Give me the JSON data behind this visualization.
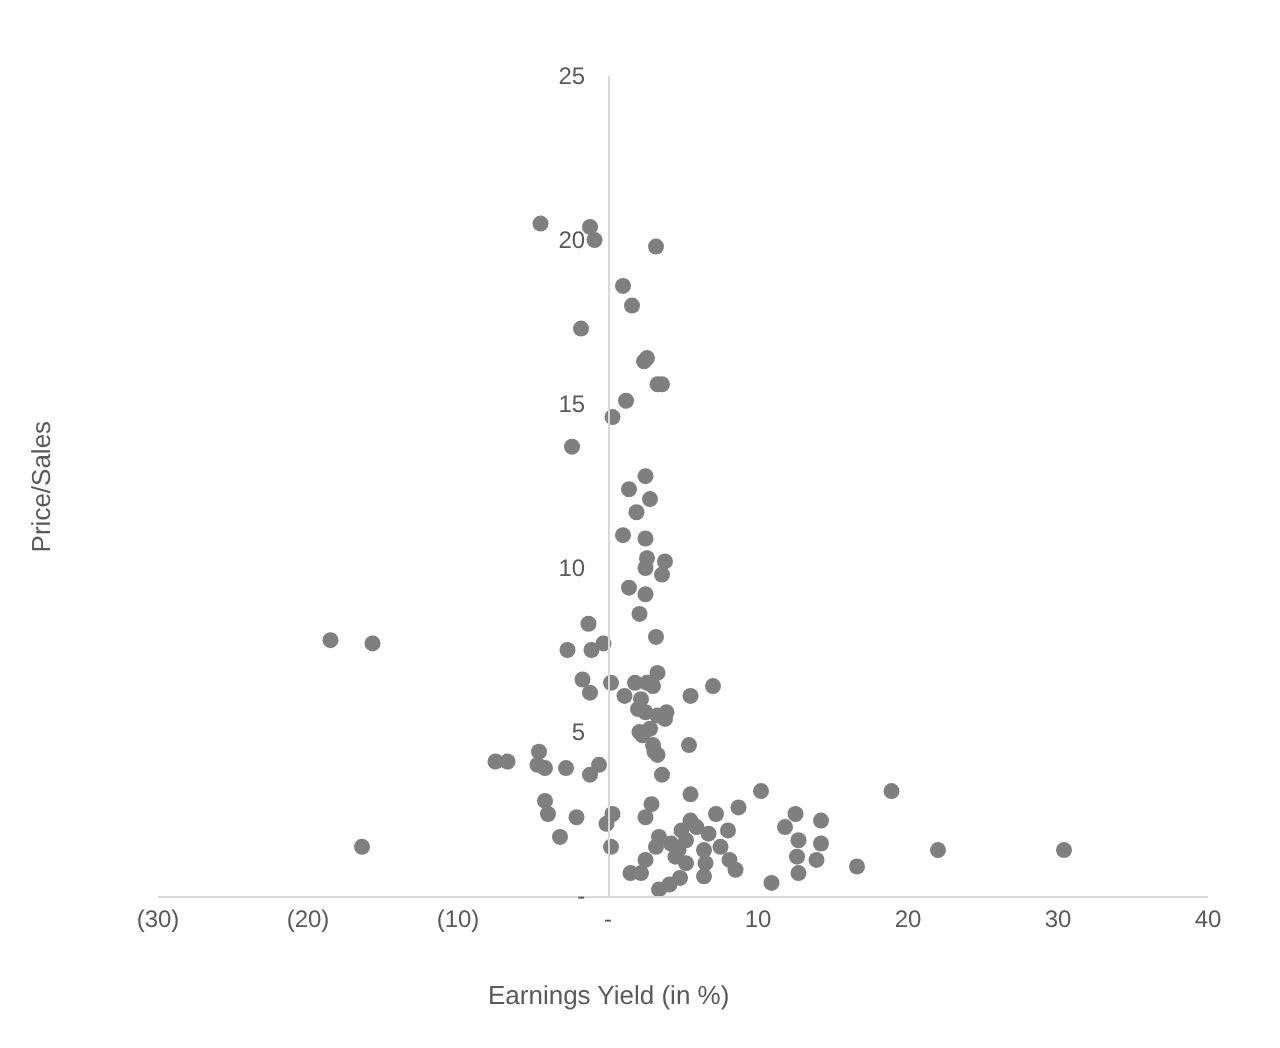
{
  "chart_data": {
    "type": "scatter",
    "xlabel": "Earnings Yield (in %)",
    "ylabel": "Price/Sales",
    "xlim": [
      -30,
      40
    ],
    "ylim": [
      0,
      25
    ],
    "xticks": [
      {
        "value": -30,
        "label": "(30)"
      },
      {
        "value": -20,
        "label": "(20)"
      },
      {
        "value": -10,
        "label": "(10)"
      },
      {
        "value": 0,
        "label": "-"
      },
      10,
      20,
      30,
      40
    ],
    "yticks": [
      {
        "value": 0,
        "label": "-"
      },
      5,
      10,
      15,
      20,
      25
    ],
    "grid": false,
    "marker": "circle",
    "series": [
      {
        "color": "#7f7f7f",
        "x": [
          -4.5,
          -1.2,
          -0.9,
          3.2,
          1.0,
          1.6,
          -1.8,
          2.4,
          2.6,
          3.3,
          3.6,
          1.2,
          0.3,
          -2.4,
          2.5,
          1.4,
          2.8,
          1.9,
          1.0,
          2.5,
          2.6,
          3.8,
          2.5,
          3.6,
          1.4,
          2.5,
          2.1,
          -18.5,
          -15.7,
          -1.3,
          3.2,
          -2.7,
          -1.1,
          -0.3,
          3.3,
          -1.7,
          0.2,
          1.8,
          2.6,
          3.0,
          7.0,
          -1.2,
          1.1,
          5.5,
          2.2,
          2.0,
          2.5,
          3.3,
          3.9,
          3.8,
          2.8,
          2.1,
          2.3,
          5.4,
          3.0,
          3.1,
          3.3,
          -4.6,
          -7.5,
          -6.7,
          -4.7,
          -4.2,
          -2.8,
          -0.6,
          -1.2,
          3.6,
          -4.2,
          -4.0,
          -2.1,
          -3.2,
          -16.4,
          0.3,
          -0.1,
          0.2,
          2.9,
          2.5,
          5.5,
          10.2,
          8.7,
          7.2,
          5.5,
          4.9,
          5.9,
          6.7,
          8.0,
          3.4,
          3.2,
          4.2,
          5.2,
          7.5,
          2.5,
          4.7,
          4.5,
          6.4,
          5.2,
          6.5,
          8.1,
          8.5,
          1.5,
          2.2,
          3.4,
          4.1,
          4.8,
          6.4,
          10.9,
          18.9,
          11.8,
          12.5,
          14.2,
          12.7,
          14.2,
          12.6,
          13.9,
          12.7,
          16.6,
          22.0,
          30.4
        ],
        "values": [
          20.5,
          20.4,
          20.0,
          19.8,
          18.6,
          18.0,
          17.3,
          16.3,
          16.4,
          15.6,
          15.6,
          15.1,
          14.6,
          13.7,
          12.8,
          12.4,
          12.1,
          11.7,
          11.0,
          10.9,
          10.3,
          10.2,
          10.0,
          9.8,
          9.4,
          9.2,
          8.6,
          7.8,
          7.7,
          8.3,
          7.9,
          7.5,
          7.5,
          7.7,
          6.8,
          6.6,
          6.5,
          6.5,
          6.5,
          6.4,
          6.4,
          6.2,
          6.1,
          6.1,
          6.0,
          5.7,
          5.6,
          5.5,
          5.6,
          5.4,
          5.1,
          5.0,
          4.9,
          4.6,
          4.6,
          4.4,
          4.3,
          4.4,
          4.1,
          4.1,
          4.0,
          3.9,
          3.9,
          4.0,
          3.7,
          3.7,
          2.9,
          2.5,
          2.4,
          1.8,
          1.5,
          2.5,
          2.2,
          1.5,
          2.8,
          2.4,
          3.1,
          3.2,
          2.7,
          2.5,
          2.3,
          2.0,
          2.1,
          1.9,
          2.0,
          1.8,
          1.5,
          1.6,
          1.7,
          1.5,
          1.1,
          1.4,
          1.2,
          1.4,
          1.0,
          1.0,
          1.1,
          0.8,
          0.7,
          0.7,
          0.2,
          0.35,
          0.55,
          0.6,
          0.4,
          3.2,
          2.1,
          2.5,
          2.3,
          1.7,
          1.6,
          1.2,
          1.1,
          0.7,
          0.9,
          1.4,
          1.4
        ]
      }
    ]
  }
}
